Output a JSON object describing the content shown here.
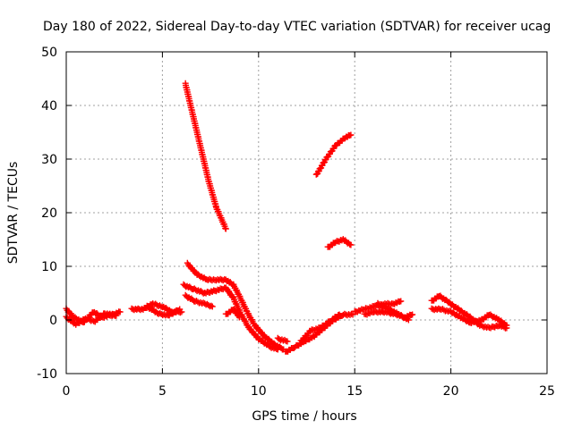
{
  "chart_data": {
    "type": "scatter",
    "title": "Day 180 of 2022, Sidereal Day-to-day VTEC variation (SDTVAR) for receiver ucag",
    "xlabel": "GPS time / hours",
    "ylabel": "SDTVAR / TECUs",
    "xlim": [
      0,
      25
    ],
    "ylim": [
      -10,
      50
    ],
    "xticks": [
      0,
      5,
      10,
      15,
      20,
      25
    ],
    "yticks": [
      -10,
      0,
      10,
      20,
      30,
      40,
      50
    ],
    "grid": true,
    "marker": "plus",
    "color": "#ff0000",
    "series": [
      {
        "name": "s1",
        "points": [
          [
            0.0,
            2.0
          ],
          [
            0.4,
            0.5
          ],
          [
            0.9,
            -0.5
          ],
          [
            1.4,
            1.5
          ],
          [
            1.9,
            0.5
          ],
          [
            2.4,
            1.0
          ],
          [
            2.8,
            1.5
          ]
        ]
      },
      {
        "name": "s2",
        "points": [
          [
            0.0,
            0.5
          ],
          [
            0.5,
            -0.8
          ],
          [
            1.0,
            0.2
          ],
          [
            1.5,
            -0.2
          ],
          [
            2.0,
            1.2
          ],
          [
            2.6,
            0.8
          ]
        ]
      },
      {
        "name": "s3",
        "points": [
          [
            3.4,
            2.0
          ],
          [
            4.0,
            2.0
          ],
          [
            4.5,
            3.0
          ],
          [
            5.0,
            2.5
          ],
          [
            5.5,
            1.5
          ],
          [
            6.0,
            1.5
          ]
        ]
      },
      {
        "name": "s4",
        "points": [
          [
            4.2,
            2.5
          ],
          [
            4.8,
            1.2
          ],
          [
            5.3,
            0.8
          ],
          [
            5.9,
            2.0
          ]
        ]
      },
      {
        "name": "s5",
        "points": [
          [
            6.2,
            44.0
          ],
          [
            6.6,
            38.0
          ],
          [
            7.0,
            32.0
          ],
          [
            7.4,
            26.0
          ],
          [
            7.8,
            21.0
          ],
          [
            8.3,
            17.0
          ]
        ]
      },
      {
        "name": "s6",
        "points": [
          [
            6.3,
            10.5
          ],
          [
            6.8,
            8.5
          ],
          [
            7.3,
            7.5
          ],
          [
            7.8,
            7.5
          ],
          [
            8.3,
            7.5
          ],
          [
            8.7,
            6.5
          ],
          [
            9.0,
            4.5
          ],
          [
            9.4,
            1.5
          ],
          [
            9.8,
            -1.0
          ],
          [
            10.3,
            -3.0
          ],
          [
            10.8,
            -4.5
          ],
          [
            11.3,
            -5.5
          ]
        ]
      },
      {
        "name": "s7",
        "points": [
          [
            6.1,
            6.5
          ],
          [
            6.6,
            5.8
          ],
          [
            7.2,
            5.0
          ],
          [
            7.8,
            5.5
          ],
          [
            8.3,
            6.0
          ],
          [
            8.7,
            4.0
          ],
          [
            9.1,
            1.0
          ],
          [
            9.5,
            -1.5
          ],
          [
            10.0,
            -3.5
          ],
          [
            10.6,
            -5.0
          ],
          [
            11.0,
            -5.5
          ]
        ]
      },
      {
        "name": "s8",
        "points": [
          [
            6.2,
            4.5
          ],
          [
            6.7,
            3.5
          ],
          [
            7.2,
            3.0
          ],
          [
            7.6,
            2.5
          ]
        ]
      },
      {
        "name": "s9",
        "points": [
          [
            8.3,
            1.0
          ],
          [
            8.7,
            2.0
          ],
          [
            9.0,
            0.5
          ]
        ]
      },
      {
        "name": "s10",
        "points": [
          [
            11.0,
            -3.5
          ],
          [
            11.5,
            -4.0
          ]
        ]
      },
      {
        "name": "s11",
        "points": [
          [
            11.4,
            -6.0
          ],
          [
            11.9,
            -5.0
          ],
          [
            12.4,
            -4.0
          ],
          [
            12.9,
            -3.0
          ],
          [
            13.4,
            -1.5
          ],
          [
            13.9,
            0.0
          ],
          [
            14.4,
            1.0
          ],
          [
            14.9,
            1.0
          ]
        ]
      },
      {
        "name": "s12",
        "points": [
          [
            12.2,
            -4.0
          ],
          [
            12.7,
            -2.0
          ],
          [
            13.2,
            -1.5
          ],
          [
            13.8,
            0.0
          ],
          [
            14.2,
            1.0
          ]
        ]
      },
      {
        "name": "s13",
        "points": [
          [
            13.0,
            27.0
          ],
          [
            13.5,
            30.0
          ],
          [
            14.0,
            32.5
          ],
          [
            14.5,
            34.0
          ],
          [
            14.8,
            34.5
          ]
        ]
      },
      {
        "name": "s14",
        "points": [
          [
            13.6,
            13.5
          ],
          [
            14.0,
            14.5
          ],
          [
            14.4,
            15.0
          ],
          [
            14.8,
            14.0
          ]
        ]
      },
      {
        "name": "s15",
        "points": [
          [
            15.0,
            1.5
          ],
          [
            15.5,
            2.0
          ],
          [
            16.0,
            2.5
          ],
          [
            16.5,
            3.0
          ],
          [
            17.0,
            3.0
          ],
          [
            17.4,
            3.5
          ]
        ]
      },
      {
        "name": "s16",
        "points": [
          [
            15.5,
            1.0
          ],
          [
            16.0,
            1.5
          ],
          [
            16.6,
            1.5
          ],
          [
            17.2,
            1.0
          ],
          [
            17.6,
            0.5
          ],
          [
            18.0,
            1.0
          ]
        ]
      },
      {
        "name": "s17",
        "points": [
          [
            16.2,
            3.0
          ],
          [
            16.8,
            2.0
          ],
          [
            17.3,
            1.0
          ],
          [
            17.8,
            0.0
          ]
        ]
      },
      {
        "name": "s18",
        "points": [
          [
            19.0,
            3.5
          ],
          [
            19.4,
            4.5
          ],
          [
            19.8,
            3.5
          ],
          [
            20.2,
            2.5
          ],
          [
            20.6,
            1.5
          ],
          [
            21.0,
            0.5
          ],
          [
            21.5,
            -1.0
          ],
          [
            22.0,
            -1.5
          ],
          [
            22.5,
            -1.0
          ],
          [
            22.9,
            -1.5
          ]
        ]
      },
      {
        "name": "s19",
        "points": [
          [
            19.0,
            2.0
          ],
          [
            19.5,
            2.0
          ],
          [
            20.0,
            1.5
          ],
          [
            20.5,
            0.5
          ],
          [
            21.0,
            -0.5
          ],
          [
            21.6,
            0.0
          ],
          [
            22.0,
            1.0
          ],
          [
            22.5,
            0.0
          ],
          [
            22.9,
            -1.0
          ]
        ]
      }
    ]
  }
}
